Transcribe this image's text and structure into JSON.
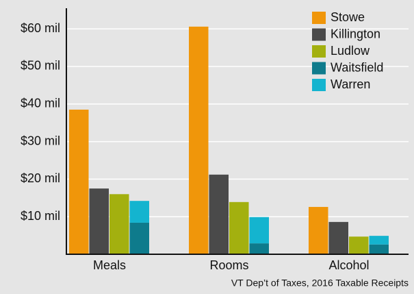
{
  "chart_data": {
    "type": "bar",
    "categories": [
      "Meals",
      "Rooms",
      "Alcohol"
    ],
    "series": [
      {
        "name": "Stowe",
        "color": "#f0960a",
        "values": [
          38.5,
          60.6,
          12.6
        ]
      },
      {
        "name": "Killington",
        "color": "#4a4a4a",
        "values": [
          17.5,
          21.2,
          8.6
        ]
      },
      {
        "name": "Ludlow",
        "color": "#a3b00f",
        "values": [
          16.0,
          13.9,
          4.7
        ]
      },
      {
        "name": "Waitsfield",
        "color": "#0e7b8c",
        "values": [
          8.4,
          2.9,
          2.6
        ]
      },
      {
        "name": "Warren",
        "color": "#14b4cf",
        "values": [
          5.8,
          7.0,
          2.3
        ],
        "stacked": true
      }
    ],
    "ylim": [
      0,
      65.5
    ],
    "yticks": [
      {
        "value": 10,
        "label": "$10 mil"
      },
      {
        "value": 20,
        "label": "$20 mil"
      },
      {
        "value": 30,
        "label": "$30 mil"
      },
      {
        "value": 40,
        "label": "$40 mil"
      },
      {
        "value": 50,
        "label": "$50 mil"
      },
      {
        "value": 60,
        "label": "$60 mil"
      }
    ],
    "grid": true,
    "legend": "top-right",
    "source": "VT Dep’t of Taxes, 2016 Taxable Receipts"
  }
}
